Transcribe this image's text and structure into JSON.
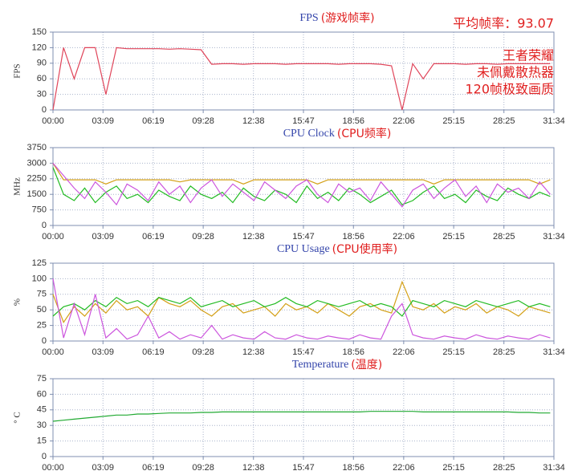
{
  "chart_data": [
    {
      "type": "line",
      "title": "FPS",
      "title_note": "(游戏帧率)",
      "ylabel": "FPS",
      "annotations": [
        "平均帧率：93.07",
        "王者荣耀",
        "未佩戴散热器",
        "120帧极致画质"
      ],
      "x": [
        0,
        40,
        80,
        120,
        160,
        200,
        240,
        280,
        320,
        360,
        400,
        440,
        480,
        520,
        560,
        600,
        640,
        680,
        720,
        760,
        800,
        840,
        880,
        920,
        960,
        1000,
        1040,
        1080,
        1120,
        1160,
        1200,
        1240,
        1280,
        1320,
        1360,
        1400,
        1440,
        1480,
        1520,
        1560,
        1600,
        1640,
        1680,
        1720,
        1760,
        1800,
        1840,
        1880
      ],
      "xlim": [
        0,
        1894
      ],
      "xticks": [
        {
          "value": 0,
          "label": "00:00"
        },
        {
          "value": 189,
          "label": "03:09"
        },
        {
          "value": 379,
          "label": "06:19"
        },
        {
          "value": 568,
          "label": "09:28"
        },
        {
          "value": 758,
          "label": "12:38"
        },
        {
          "value": 947,
          "label": "15:47"
        },
        {
          "value": 1136,
          "label": "18:56"
        },
        {
          "value": 1326,
          "label": "22:06"
        },
        {
          "value": 1515,
          "label": "25:15"
        },
        {
          "value": 1705,
          "label": "28:25"
        },
        {
          "value": 1894,
          "label": "31:34"
        }
      ],
      "ylim": [
        0,
        150
      ],
      "yticks": [
        0,
        30,
        60,
        90,
        120,
        150
      ],
      "grid": true,
      "series": [
        {
          "color": "#e0455a",
          "values": [
            0,
            120,
            60,
            120,
            120,
            30,
            120,
            118,
            118,
            118,
            118,
            117,
            118,
            117,
            116,
            88,
            89,
            89,
            88,
            89,
            89,
            89,
            88,
            89,
            89,
            89,
            89,
            88,
            89,
            89,
            89,
            88,
            85,
            0,
            89,
            60,
            89,
            89,
            89,
            88,
            89,
            89,
            88,
            89,
            89,
            89,
            89,
            89
          ]
        }
      ]
    },
    {
      "type": "line",
      "title": "CPU Clock",
      "title_note": "(CPU频率)",
      "ylabel": "MHz",
      "x": [
        0,
        40,
        80,
        120,
        160,
        200,
        240,
        280,
        320,
        360,
        400,
        440,
        480,
        520,
        560,
        600,
        640,
        680,
        720,
        760,
        800,
        840,
        880,
        920,
        960,
        1000,
        1040,
        1080,
        1120,
        1160,
        1200,
        1240,
        1280,
        1320,
        1360,
        1400,
        1440,
        1480,
        1520,
        1560,
        1600,
        1640,
        1680,
        1720,
        1760,
        1800,
        1840,
        1880
      ],
      "xlim": [
        0,
        1894
      ],
      "xticks": [
        {
          "value": 0,
          "label": "00:00"
        },
        {
          "value": 189,
          "label": "03:09"
        },
        {
          "value": 379,
          "label": "06:19"
        },
        {
          "value": 568,
          "label": "09:28"
        },
        {
          "value": 758,
          "label": "12:38"
        },
        {
          "value": 947,
          "label": "15:47"
        },
        {
          "value": 1136,
          "label": "18:56"
        },
        {
          "value": 1326,
          "label": "22:06"
        },
        {
          "value": 1515,
          "label": "25:15"
        },
        {
          "value": 1705,
          "label": "28:25"
        },
        {
          "value": 1894,
          "label": "31:34"
        }
      ],
      "ylim": [
        0,
        3750
      ],
      "yticks": [
        0,
        750,
        1500,
        2250,
        3000,
        3750
      ],
      "grid": true,
      "series": [
        {
          "color": "#d4a017",
          "values": [
            3000,
            2200,
            2200,
            2200,
            2200,
            2000,
            2200,
            2200,
            2200,
            2200,
            2200,
            2200,
            2100,
            2200,
            2200,
            2200,
            2200,
            2200,
            2000,
            2200,
            2200,
            2200,
            2200,
            2200,
            2200,
            2000,
            2200,
            2200,
            2200,
            2200,
            2200,
            2200,
            2200,
            2200,
            2200,
            2200,
            2000,
            2200,
            2200,
            2200,
            2200,
            2200,
            2200,
            2200,
            2200,
            2200,
            2000,
            2200
          ]
        },
        {
          "color": "#22bb22",
          "values": [
            2800,
            1500,
            1200,
            1800,
            1100,
            1600,
            1900,
            1300,
            1500,
            1100,
            1700,
            1400,
            1200,
            1900,
            1500,
            1300,
            1600,
            1100,
            1800,
            1400,
            1200,
            1700,
            1500,
            1100,
            1900,
            1300,
            1600,
            1200,
            1800,
            1500,
            1100,
            1400,
            1700,
            1000,
            1200,
            1600,
            1900,
            1300,
            1500,
            1100,
            1700,
            1400,
            1200,
            1800,
            1500,
            1300,
            1600,
            1400
          ]
        },
        {
          "color": "#cc55dd",
          "values": [
            3000,
            2400,
            1800,
            1300,
            2100,
            1600,
            1000,
            2000,
            1700,
            1200,
            2100,
            1500,
            1900,
            1100,
            1800,
            2200,
            1400,
            2000,
            1600,
            1200,
            2100,
            1700,
            1300,
            1900,
            2200,
            1500,
            1100,
            2000,
            1600,
            1800,
            1200,
            2100,
            1500,
            900,
            1700,
            2000,
            1300,
            1800,
            2200,
            1400,
            1900,
            1100,
            2000,
            1600,
            1800,
            1300,
            2100,
            1500
          ]
        }
      ]
    },
    {
      "type": "line",
      "title": "CPU Usage",
      "title_note": "(CPU使用率)",
      "ylabel": "%",
      "x": [
        0,
        40,
        80,
        120,
        160,
        200,
        240,
        280,
        320,
        360,
        400,
        440,
        480,
        520,
        560,
        600,
        640,
        680,
        720,
        760,
        800,
        840,
        880,
        920,
        960,
        1000,
        1040,
        1080,
        1120,
        1160,
        1200,
        1240,
        1280,
        1320,
        1360,
        1400,
        1440,
        1480,
        1520,
        1560,
        1600,
        1640,
        1680,
        1720,
        1760,
        1800,
        1840,
        1880
      ],
      "xlim": [
        0,
        1894
      ],
      "xticks": [
        {
          "value": 0,
          "label": "00:00"
        },
        {
          "value": 189,
          "label": "03:09"
        },
        {
          "value": 379,
          "label": "06:19"
        },
        {
          "value": 568,
          "label": "09:28"
        },
        {
          "value": 758,
          "label": "12:38"
        },
        {
          "value": 947,
          "label": "15:47"
        },
        {
          "value": 1136,
          "label": "18:56"
        },
        {
          "value": 1326,
          "label": "22:06"
        },
        {
          "value": 1515,
          "label": "25:15"
        },
        {
          "value": 1705,
          "label": "28:25"
        },
        {
          "value": 1894,
          "label": "31:34"
        }
      ],
      "ylim": [
        0,
        125
      ],
      "yticks": [
        0,
        25,
        50,
        75,
        100,
        125
      ],
      "grid": true,
      "series": [
        {
          "color": "#d4a017",
          "values": [
            75,
            30,
            55,
            40,
            60,
            45,
            65,
            50,
            55,
            40,
            70,
            60,
            55,
            65,
            50,
            40,
            55,
            60,
            45,
            50,
            55,
            40,
            60,
            50,
            55,
            45,
            60,
            50,
            40,
            55,
            60,
            50,
            45,
            95,
            55,
            50,
            60,
            45,
            55,
            50,
            60,
            45,
            55,
            50,
            40,
            55,
            50,
            45
          ]
        },
        {
          "color": "#22bb22",
          "values": [
            40,
            55,
            60,
            50,
            65,
            55,
            70,
            60,
            65,
            55,
            70,
            65,
            60,
            70,
            55,
            60,
            65,
            55,
            60,
            65,
            55,
            60,
            70,
            60,
            55,
            65,
            60,
            55,
            60,
            65,
            55,
            60,
            55,
            40,
            65,
            60,
            55,
            65,
            60,
            55,
            65,
            60,
            55,
            60,
            65,
            55,
            60,
            55
          ]
        },
        {
          "color": "#cc55dd",
          "values": [
            100,
            5,
            60,
            10,
            75,
            5,
            20,
            3,
            10,
            40,
            5,
            15,
            3,
            10,
            5,
            25,
            3,
            10,
            5,
            3,
            15,
            5,
            3,
            10,
            5,
            3,
            8,
            5,
            3,
            10,
            5,
            3,
            40,
            60,
            10,
            5,
            3,
            8,
            5,
            3,
            10,
            5,
            3,
            8,
            5,
            3,
            10,
            5
          ]
        }
      ]
    },
    {
      "type": "line",
      "title": "Temperature",
      "title_note": "(温度)",
      "ylabel": "° C",
      "x": [
        0,
        40,
        80,
        120,
        160,
        200,
        240,
        280,
        320,
        360,
        400,
        440,
        480,
        520,
        560,
        600,
        640,
        680,
        720,
        760,
        800,
        840,
        880,
        920,
        960,
        1000,
        1040,
        1080,
        1120,
        1160,
        1200,
        1240,
        1280,
        1320,
        1360,
        1400,
        1440,
        1480,
        1520,
        1560,
        1600,
        1640,
        1680,
        1720,
        1760,
        1800,
        1840,
        1880
      ],
      "xlim": [
        0,
        1894
      ],
      "xticks": [
        {
          "value": 0,
          "label": "00:00"
        },
        {
          "value": 189,
          "label": "03:09"
        },
        {
          "value": 379,
          "label": "06:19"
        },
        {
          "value": 568,
          "label": "09:28"
        },
        {
          "value": 758,
          "label": "12:38"
        },
        {
          "value": 947,
          "label": "15:47"
        },
        {
          "value": 1136,
          "label": "18:56"
        },
        {
          "value": 1326,
          "label": "22:06"
        },
        {
          "value": 1515,
          "label": "25:15"
        },
        {
          "value": 1705,
          "label": "28:25"
        },
        {
          "value": 1894,
          "label": "31:34"
        }
      ],
      "ylim": [
        0,
        75
      ],
      "yticks": [
        0,
        15,
        30,
        45,
        60,
        75
      ],
      "grid": true,
      "series": [
        {
          "color": "#22aa33",
          "values": [
            34,
            35,
            36,
            37,
            38,
            39,
            40,
            40,
            41,
            41,
            41.5,
            42,
            42,
            42,
            42.5,
            42.5,
            43,
            43,
            43,
            43,
            43,
            43,
            43,
            43,
            43,
            43,
            43,
            43,
            43,
            43,
            43.5,
            43.5,
            43.5,
            43.5,
            43.5,
            43,
            43,
            43,
            43,
            43,
            43,
            43,
            43,
            43,
            42.5,
            42.5,
            42,
            42
          ]
        }
      ]
    }
  ]
}
